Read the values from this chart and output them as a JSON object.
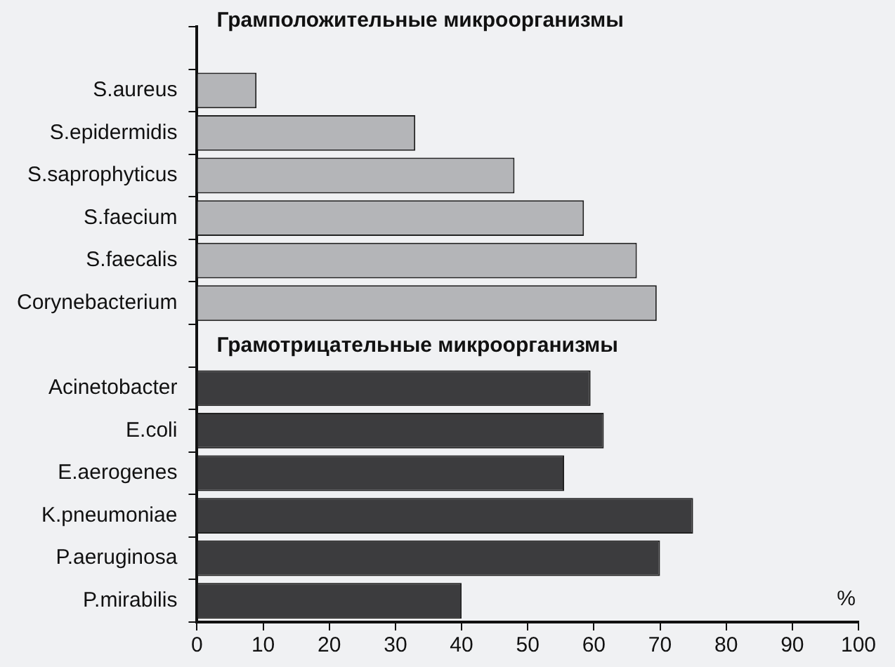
{
  "chart_data": {
    "type": "bar",
    "orientation": "horizontal",
    "xlabel": "%",
    "categories": [
      null,
      "S.aureus",
      "S.epidermidis",
      "S.saprophyticus",
      "S.faecium",
      "S.faecalis",
      "Corynebacterium",
      null,
      "Acinetobacter",
      "E.coli",
      "E.aerogenes",
      "K.pneumoniae",
      "P.aeruginosa",
      "P.mirabilis"
    ],
    "values": [
      null,
      9,
      33,
      48,
      58.5,
      66.5,
      69.5,
      null,
      59.5,
      61.5,
      55.5,
      75,
      70,
      40
    ],
    "colors": [
      "#b4b5b8",
      "#b4b5b8",
      "#b4b5b8",
      "#b4b5b8",
      "#b4b5b8",
      "#b4b5b8",
      "#b4b5b8",
      "#3c3c3e",
      "#3c3c3e",
      "#3c3c3e",
      "#3c3c3e",
      "#3c3c3e",
      "#3c3c3e",
      "#3c3c3e"
    ],
    "annotations": [
      "Грамположительные микроорганизмы",
      "Грамотрицательные микроорганизмы"
    ],
    "xlim": [
      0,
      100
    ],
    "xticks": [
      0,
      10,
      20,
      30,
      40,
      50,
      60,
      70,
      80,
      90,
      100
    ],
    "grid": false,
    "legend": false
  }
}
